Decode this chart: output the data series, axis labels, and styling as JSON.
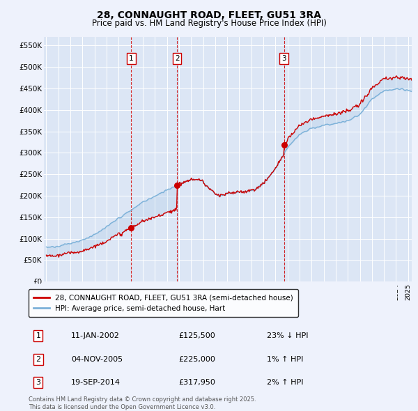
{
  "title": "28, CONNAUGHT ROAD, FLEET, GU51 3RA",
  "subtitle": "Price paid vs. HM Land Registry's House Price Index (HPI)",
  "hpi_label": "HPI: Average price, semi-detached house, Hart",
  "property_label": "28, CONNAUGHT ROAD, FLEET, GU51 3RA (semi-detached house)",
  "transactions": [
    {
      "num": 1,
      "date": "11-JAN-2002",
      "price": 125500,
      "year": 2002.04,
      "pct": "23% ↓ HPI"
    },
    {
      "num": 2,
      "date": "04-NOV-2005",
      "price": 225000,
      "year": 2005.84,
      "pct": "1% ↑ HPI"
    },
    {
      "num": 3,
      "date": "19-SEP-2014",
      "price": 317950,
      "year": 2014.71,
      "pct": "2% ↑ HPI"
    }
  ],
  "copyright_text": "Contains HM Land Registry data © Crown copyright and database right 2025.\nThis data is licensed under the Open Government Licence v3.0.",
  "background_color": "#eef2fc",
  "plot_bg_color": "#dce6f5",
  "line_color_hpi": "#7ab0d8",
  "line_color_property": "#cc0000",
  "ylim": [
    0,
    570000
  ],
  "yticks": [
    0,
    50000,
    100000,
    150000,
    200000,
    250000,
    300000,
    350000,
    400000,
    450000,
    500000,
    550000
  ],
  "year_start": 1995,
  "year_end": 2025.3,
  "row_data": [
    [
      "1",
      "11-JAN-2002",
      "£125,500",
      "23% ↓ HPI"
    ],
    [
      "2",
      "04-NOV-2005",
      "£225,000",
      "1% ↑ HPI"
    ],
    [
      "3",
      "19-SEP-2014",
      "£317,950",
      "2% ↑ HPI"
    ]
  ]
}
